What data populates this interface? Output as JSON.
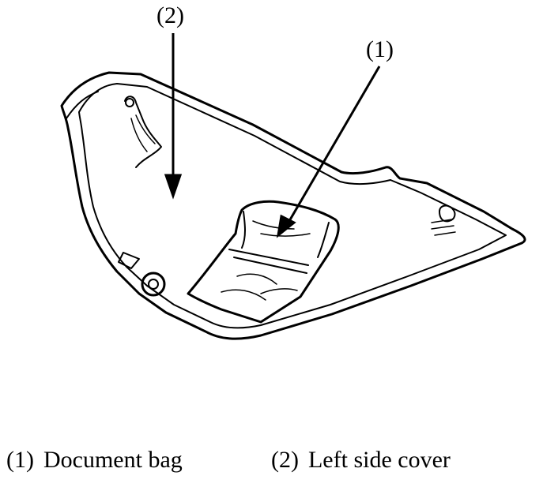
{
  "callouts": [
    {
      "label": "(1)",
      "part": "document-bag"
    },
    {
      "label": "(2)",
      "part": "left-side-cover"
    }
  ],
  "legend": [
    {
      "num": "(1)",
      "text": "Document bag"
    },
    {
      "num": "(2)",
      "text": "Left side cover"
    }
  ],
  "colors": {
    "line": "#000000",
    "background": "#ffffff"
  }
}
